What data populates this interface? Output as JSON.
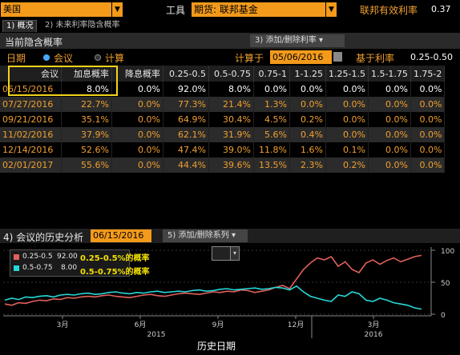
{
  "top": {
    "market": "美国",
    "tool_label": "工具",
    "tool_value": "期货: 联邦基金",
    "fed_rate_label": "联邦有效利率",
    "fed_rate_value": "0.37"
  },
  "tabs": [
    {
      "label": "1) 概况"
    },
    {
      "label": "2) 未来利率隐含概率"
    }
  ],
  "current_section": {
    "title": "当前隐含概率",
    "button": "3) 添加/删除利率 ▾"
  },
  "controls": {
    "date_label": "日期",
    "radio_meeting": "会议",
    "radio_calc": "计算",
    "calc_at_label": "计算于",
    "calc_date": "05/06/2016",
    "base_rate_label": "基于利率",
    "base_rate_value": "0.25-0.50"
  },
  "table": {
    "headers": [
      "会议",
      "加息概率",
      "降息概率",
      "0.25-0.5",
      "0.5-0.75",
      "0.75-1",
      "1-1.25",
      "1.25-1.5",
      "1.5-1.75",
      "1.75-2"
    ],
    "rows": [
      [
        "06/15/2016",
        "8.0%",
        "0.0%",
        "92.0%",
        "8.0%",
        "0.0%",
        "0.0%",
        "0.0%",
        "0.0%",
        "0.0%"
      ],
      [
        "07/27/2016",
        "22.7%",
        "0.0%",
        "77.3%",
        "21.4%",
        "1.3%",
        "0.0%",
        "0.0%",
        "0.0%",
        "0.0%"
      ],
      [
        "09/21/2016",
        "35.1%",
        "0.0%",
        "64.9%",
        "30.4%",
        "4.5%",
        "0.2%",
        "0.0%",
        "0.0%",
        "0.0%"
      ],
      [
        "11/02/2016",
        "37.9%",
        "0.0%",
        "62.1%",
        "31.9%",
        "5.6%",
        "0.4%",
        "0.0%",
        "0.0%",
        "0.0%"
      ],
      [
        "12/14/2016",
        "52.6%",
        "0.0%",
        "47.4%",
        "39.0%",
        "11.8%",
        "1.6%",
        "0.1%",
        "0.0%",
        "0.0%"
      ],
      [
        "02/01/2017",
        "55.6%",
        "0.0%",
        "44.4%",
        "39.6%",
        "13.5%",
        "2.3%",
        "0.2%",
        "0.0%",
        "0.0%"
      ]
    ]
  },
  "history_section": {
    "title": "4) 会议的历史分析",
    "date": "06/15/2016",
    "button": "5) 添加/删除系列 ▾"
  },
  "chart_data": {
    "type": "line",
    "series": [
      {
        "name": "0.25-0.5",
        "last_value": "92.00",
        "color": "#e0605c",
        "values": [
          16,
          14,
          18,
          17,
          20,
          22,
          21,
          24,
          23,
          26,
          25,
          27,
          28,
          27,
          29,
          30,
          28,
          27,
          26,
          28,
          30,
          31,
          29,
          28,
          30,
          32,
          33,
          32,
          31,
          33,
          35,
          34,
          36,
          35,
          38,
          37,
          34,
          36,
          38,
          42,
          45,
          40,
          55,
          70,
          80,
          88,
          85,
          90,
          75,
          82,
          70,
          65,
          80,
          85,
          78,
          84,
          88,
          82,
          86,
          90,
          92
        ]
      },
      {
        "name": "0.5-0.75",
        "last_value": "8.00",
        "color": "#27d7d7",
        "values": [
          22,
          25,
          23,
          27,
          26,
          28,
          29,
          27,
          30,
          31,
          30,
          32,
          33,
          31,
          32,
          34,
          35,
          33,
          32,
          34,
          33,
          35,
          36,
          34,
          35,
          36,
          35,
          37,
          38,
          36,
          37,
          39,
          40,
          38,
          39,
          40,
          41,
          39,
          40,
          42,
          41,
          38,
          44,
          35,
          28,
          25,
          22,
          20,
          30,
          28,
          35,
          32,
          22,
          20,
          25,
          22,
          18,
          16,
          14,
          10,
          8
        ]
      }
    ],
    "annotations": [
      "0.25-0.5%的概率",
      "0.5-0.75%的概率"
    ],
    "y_ticks": [
      "100",
      "50",
      "0"
    ],
    "ylim": [
      0,
      100
    ],
    "x_ticks": [
      "3月",
      "6月",
      "9月",
      "12月",
      "3月"
    ],
    "year_labels": [
      "2015",
      "2016"
    ],
    "xlabel": "历史日期"
  }
}
